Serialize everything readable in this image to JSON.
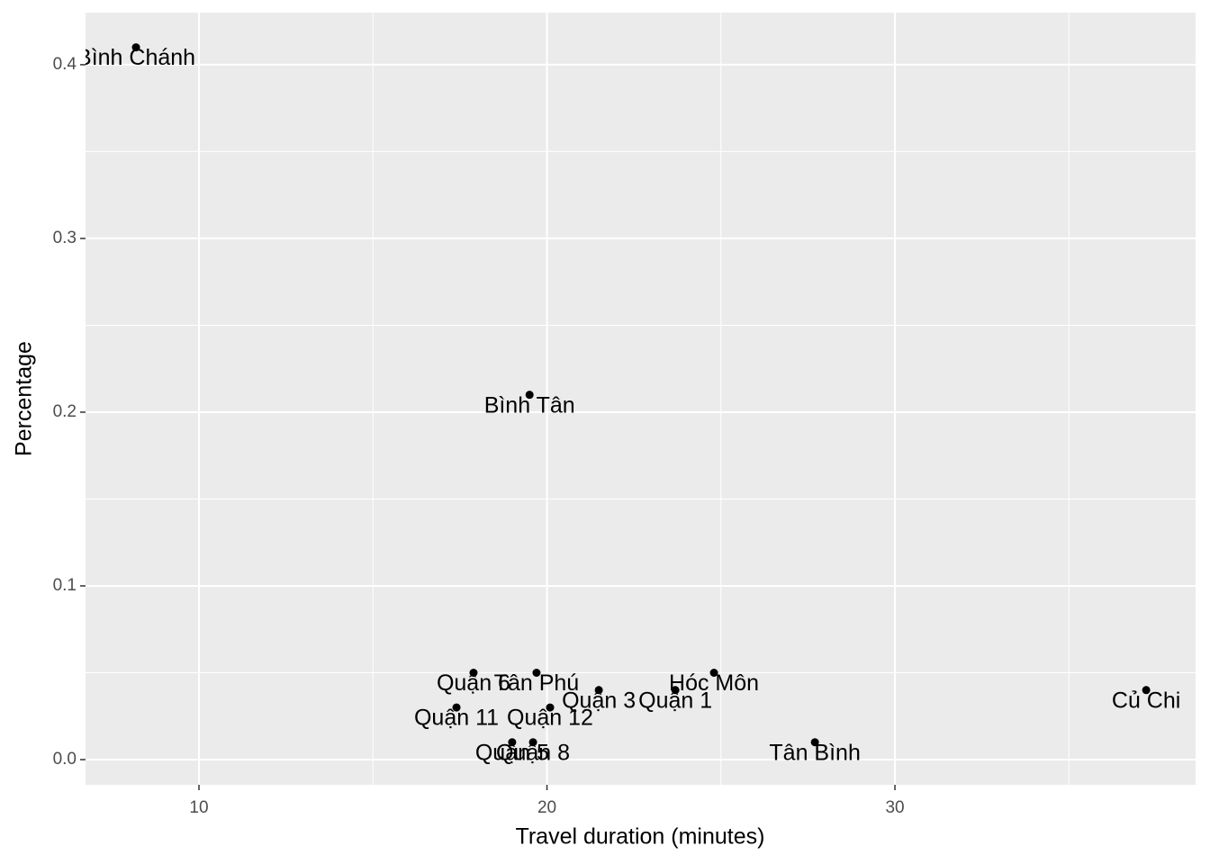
{
  "chart_data": {
    "type": "scatter",
    "x_label": "Travel duration (minutes)",
    "y_label": "Percentage",
    "labels": [
      "Bình Chánh",
      "Bình Tân",
      "Quận 6",
      "Tân Phú",
      "Quận 3",
      "Quận 1",
      "Hóc Môn",
      "Củ Chi",
      "Quận 11",
      "Quận 12",
      "Quận 5",
      "Quận 8",
      "Tân Bình"
    ],
    "x": [
      8.19,
      19.5,
      17.89,
      19.7,
      21.49,
      23.69,
      24.8,
      37.22,
      17.4,
      20.09,
      19.0,
      19.6,
      27.7
    ],
    "values": [
      0.41,
      0.21,
      0.05,
      0.05,
      0.04,
      0.04,
      0.05,
      0.04,
      0.03,
      0.03,
      0.01,
      0.01,
      0.01
    ],
    "color": "#000000",
    "xlim": [
      6.74,
      38.64
    ],
    "ylim": [
      -0.0145,
      0.43
    ],
    "xticks": [
      10,
      20,
      30
    ],
    "yticks": [
      {
        "value": 0,
        "label": "0.0"
      },
      0.1,
      0.2,
      0.3,
      0.4
    ],
    "xminor": [
      15,
      25,
      35
    ],
    "yminor": [
      0.05,
      0.15,
      0.25,
      0.35
    ],
    "grid": true
  }
}
